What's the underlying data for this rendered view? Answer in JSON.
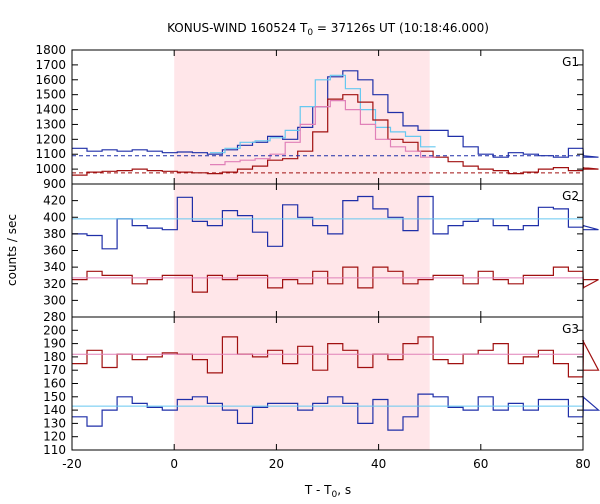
{
  "chart_data": {
    "type": "line",
    "title_main": "KONUS-WIND 160524 T",
    "title_sub": "0",
    "title_rest": " = 37126s UT (10:18:46.000)",
    "xlabel_main": "T - T",
    "xlabel_sub": "0",
    "xlabel_rest": ", s",
    "ylabel": "counts / sec",
    "xlim": [
      -20,
      80
    ],
    "x_ticks": [
      -20,
      0,
      20,
      40,
      60,
      80
    ],
    "highlight_region": [
      0,
      50
    ],
    "colors": {
      "blue": "#1f2fa8",
      "red": "#a01010",
      "light_blue": "#66c8f0",
      "pink": "#e080b8",
      "highlight": "#ffe6e9"
    },
    "panels": [
      {
        "label": "G1",
        "ylim": [
          900,
          1800
        ],
        "y_ticks": [
          900,
          1000,
          1100,
          1200,
          1300,
          1400,
          1500,
          1600,
          1700,
          1800
        ],
        "series": [
          {
            "style": "step",
            "color": "blue",
            "x0": -20,
            "dx": 2.944,
            "values": [
              1140,
              1120,
              1130,
              1120,
              1130,
              1120,
              1110,
              1115,
              1110,
              1100,
              1130,
              1160,
              1180,
              1220,
              1200,
              1280,
              1420,
              1620,
              1660,
              1600,
              1500,
              1380,
              1290,
              1260,
              1260,
              1220,
              1150,
              1100,
              1080,
              1110,
              1100,
              1090,
              1080,
              1140,
              1090,
              1080
            ]
          },
          {
            "style": "step",
            "color": "light_blue",
            "x0": 7.0,
            "dx": 2.944,
            "values": [
              1110,
              1140,
              1180,
              1190,
              1210,
              1260,
              1420,
              1600,
              1630,
              1540,
              1400,
              1280,
              1250,
              1220,
              1150
            ]
          },
          {
            "style": "step",
            "color": "red",
            "x0": -20,
            "dx": 2.944,
            "values": [
              960,
              980,
              985,
              990,
              1000,
              990,
              985,
              980,
              975,
              970,
              980,
              1000,
              1020,
              1060,
              1070,
              1120,
              1250,
              1470,
              1500,
              1450,
              1330,
              1200,
              1180,
              1120,
              1080,
              1050,
              1020,
              1000,
              990,
              970,
              980,
              1000,
              1010,
              990,
              1010,
              1000
            ]
          },
          {
            "style": "step",
            "color": "pink",
            "x0": 7.0,
            "dx": 2.944,
            "values": [
              1030,
              1050,
              1060,
              1070,
              1100,
              1180,
              1300,
              1420,
              1460,
              1400,
              1300,
              1200,
              1150,
              1120,
              1080
            ]
          },
          {
            "style": "dashed",
            "color": "blue",
            "value": 1090
          },
          {
            "style": "dashed",
            "color": "red",
            "value": 975
          }
        ]
      },
      {
        "label": "G2",
        "ylim": [
          280,
          440
        ],
        "y_ticks": [
          280,
          300,
          320,
          340,
          360,
          380,
          400,
          420
        ],
        "series": [
          {
            "style": "step",
            "color": "blue",
            "x0": -20,
            "dx": 2.944,
            "values": [
              380,
              378,
              362,
              398,
              390,
              387,
              385,
              424,
              395,
              390,
              408,
              402,
              382,
              365,
              415,
              400,
              390,
              380,
              420,
              425,
              410,
              400,
              384,
              425,
              380,
              390,
              395,
              398,
              390,
              385,
              390,
              412,
              410,
              388,
              390,
              385
            ]
          },
          {
            "style": "step",
            "color": "red",
            "x0": -20,
            "dx": 2.944,
            "values": [
              325,
              335,
              330,
              330,
              320,
              325,
              330,
              330,
              310,
              330,
              325,
              330,
              330,
              315,
              325,
              320,
              335,
              320,
              340,
              315,
              340,
              335,
              320,
              325,
              330,
              330,
              320,
              335,
              325,
              320,
              330,
              330,
              340,
              335,
              315,
              325
            ]
          },
          {
            "style": "flat",
            "color": "light_blue",
            "value": 398
          },
          {
            "style": "flat",
            "color": "pink",
            "value": 327
          }
        ]
      },
      {
        "label": "G3",
        "ylim": [
          110,
          210
        ],
        "y_ticks": [
          110,
          120,
          130,
          140,
          150,
          160,
          170,
          180,
          190,
          200
        ],
        "series": [
          {
            "style": "step",
            "color": "red",
            "x0": -20,
            "dx": 2.944,
            "values": [
              175,
              185,
              172,
              182,
              178,
              180,
              183,
              182,
              178,
              168,
              195,
              182,
              180,
              185,
              175,
              188,
              170,
              190,
              185,
              172,
              182,
              178,
              190,
              195,
              178,
              175,
              182,
              185,
              190,
              175,
              180,
              185,
              175,
              165,
              192,
              170
            ]
          },
          {
            "style": "step",
            "color": "blue",
            "x0": -20,
            "dx": 2.944,
            "values": [
              135,
              128,
              140,
              150,
              145,
              142,
              140,
              148,
              150,
              145,
              140,
              130,
              142,
              145,
              145,
              140,
              145,
              150,
              145,
              130,
              148,
              125,
              135,
              152,
              150,
              142,
              140,
              150,
              140,
              145,
              140,
              148,
              148,
              135,
              150,
              140
            ]
          },
          {
            "style": "flat",
            "color": "pink",
            "value": 182
          },
          {
            "style": "flat",
            "color": "light_blue",
            "value": 143
          }
        ]
      }
    ]
  }
}
